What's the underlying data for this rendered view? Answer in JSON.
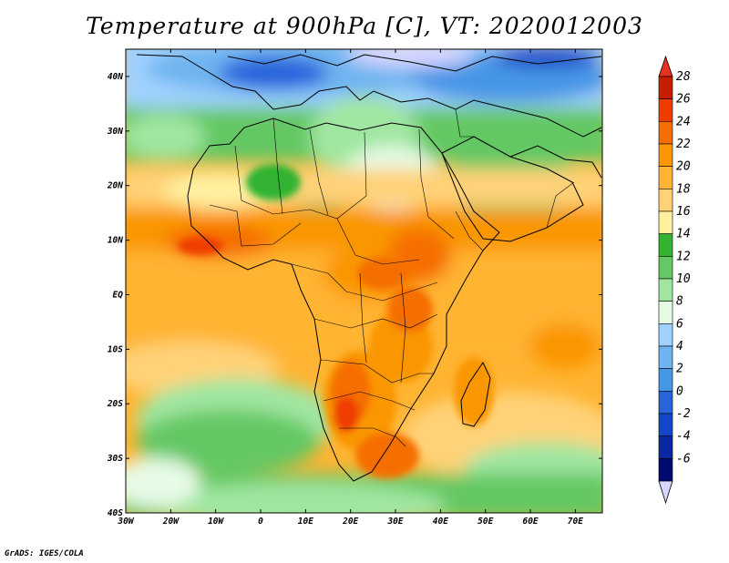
{
  "title": "Temperature at 900hPa [C], VT: 2020012003",
  "credit": "GrADS: IGES/COLA",
  "axes": {
    "lon_ticks": [
      {
        "value": -30,
        "label": "30W"
      },
      {
        "value": -20,
        "label": "20W"
      },
      {
        "value": -10,
        "label": "10W"
      },
      {
        "value": 0,
        "label": "0"
      },
      {
        "value": 10,
        "label": "10E"
      },
      {
        "value": 20,
        "label": "20E"
      },
      {
        "value": 30,
        "label": "30E"
      },
      {
        "value": 40,
        "label": "40E"
      },
      {
        "value": 50,
        "label": "50E"
      },
      {
        "value": 60,
        "label": "60E"
      },
      {
        "value": 70,
        "label": "70E"
      }
    ],
    "lat_ticks": [
      {
        "value": 40,
        "label": "40N"
      },
      {
        "value": 30,
        "label": "30N"
      },
      {
        "value": 20,
        "label": "20N"
      },
      {
        "value": 10,
        "label": "10N"
      },
      {
        "value": 0,
        "label": "EQ"
      },
      {
        "value": -10,
        "label": "10S"
      },
      {
        "value": -20,
        "label": "20S"
      },
      {
        "value": -30,
        "label": "30S"
      },
      {
        "value": -40,
        "label": "40S"
      }
    ],
    "lon_range": [
      -30,
      76
    ],
    "lat_range": [
      -40,
      45
    ]
  },
  "colorbar": {
    "labels": [
      "28",
      "26",
      "24",
      "22",
      "20",
      "18",
      "16",
      "14",
      "12",
      "10",
      "8",
      "6",
      "4",
      "2",
      "0",
      "-2",
      "-4",
      "-6"
    ],
    "colors": [
      "#c81e00",
      "#f03c00",
      "#f56e00",
      "#fa9600",
      "#ffb432",
      "#ffd278",
      "#fff0a0",
      "#32b432",
      "#64c864",
      "#a0e6a0",
      "#e6fae6",
      "#a0d2ff",
      "#6eb4f0",
      "#4696e6",
      "#2864dc",
      "#1446c8",
      "#0a28a0",
      "#000a6e"
    ],
    "under_color": "#d7d7ff",
    "over_color": "#e6321e",
    "min": -6,
    "max": 28,
    "step": 2
  },
  "palette": {
    "land_base": "#ffb432",
    "ocean_warm": "#fa9600",
    "ocean_mid": "#ffd278",
    "border": "#000000"
  }
}
